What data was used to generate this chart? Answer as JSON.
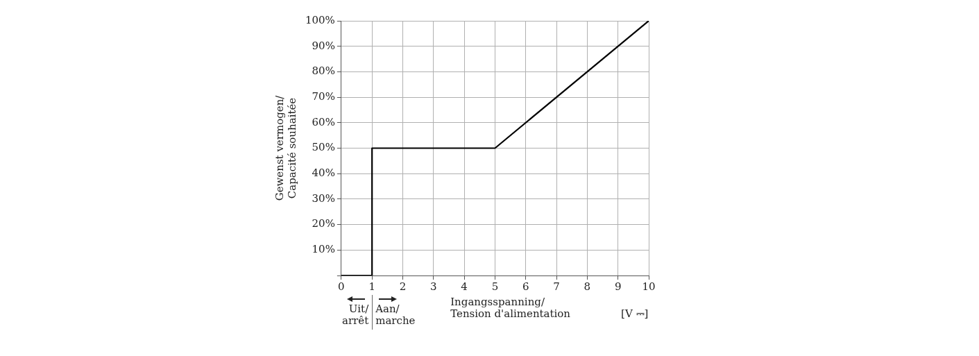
{
  "chart_data": {
    "type": "line",
    "xlabel": "Ingangsspanning/\nTension d'alimentation",
    "ylabel": "Gewenst vermogen/\nCapacité souhaitée",
    "annotations": [
      "Uit/\narrêt",
      "Aan/\nmarche",
      "[V ⎓]"
    ],
    "series": [
      {
        "color": "#000000",
        "x": [
          0,
          1,
          1,
          5,
          10
        ],
        "values": [
          0,
          0,
          50,
          50,
          100
        ]
      }
    ],
    "xlim": [
      0,
      10
    ],
    "xticks": [
      0,
      1,
      2,
      3,
      4,
      5,
      6,
      7,
      8,
      9,
      10
    ],
    "ylim": [
      0,
      100
    ],
    "yticks": [
      {
        "value": 0,
        "label": null
      },
      {
        "value": 10,
        "label": "10%"
      },
      {
        "value": 20,
        "label": "20%"
      },
      {
        "value": 30,
        "label": "30%"
      },
      {
        "value": 40,
        "label": "40%"
      },
      {
        "value": 50,
        "label": "50%"
      },
      {
        "value": 60,
        "label": "60%"
      },
      {
        "value": 70,
        "label": "70%"
      },
      {
        "value": 80,
        "label": "80%"
      },
      {
        "value": 90,
        "label": "90%"
      },
      {
        "value": 100,
        "label": "100%"
      }
    ],
    "grid": true,
    "legend": false,
    "marker": "none",
    "line_style": "solid"
  }
}
